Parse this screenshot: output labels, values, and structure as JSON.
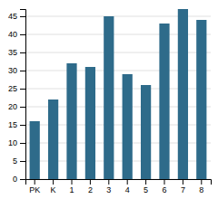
{
  "chart_data": {
    "type": "bar",
    "categories": [
      "PK",
      "K",
      "1",
      "2",
      "3",
      "4",
      "5",
      "6",
      "7",
      "8"
    ],
    "values": [
      16,
      22,
      32,
      31,
      45,
      29,
      26,
      43,
      47,
      44
    ],
    "color": "#2e6b8a",
    "ylim": [
      0,
      47
    ],
    "yticks": [
      0,
      5,
      10,
      15,
      20,
      25,
      30,
      35,
      40,
      45
    ],
    "grid": true
  }
}
